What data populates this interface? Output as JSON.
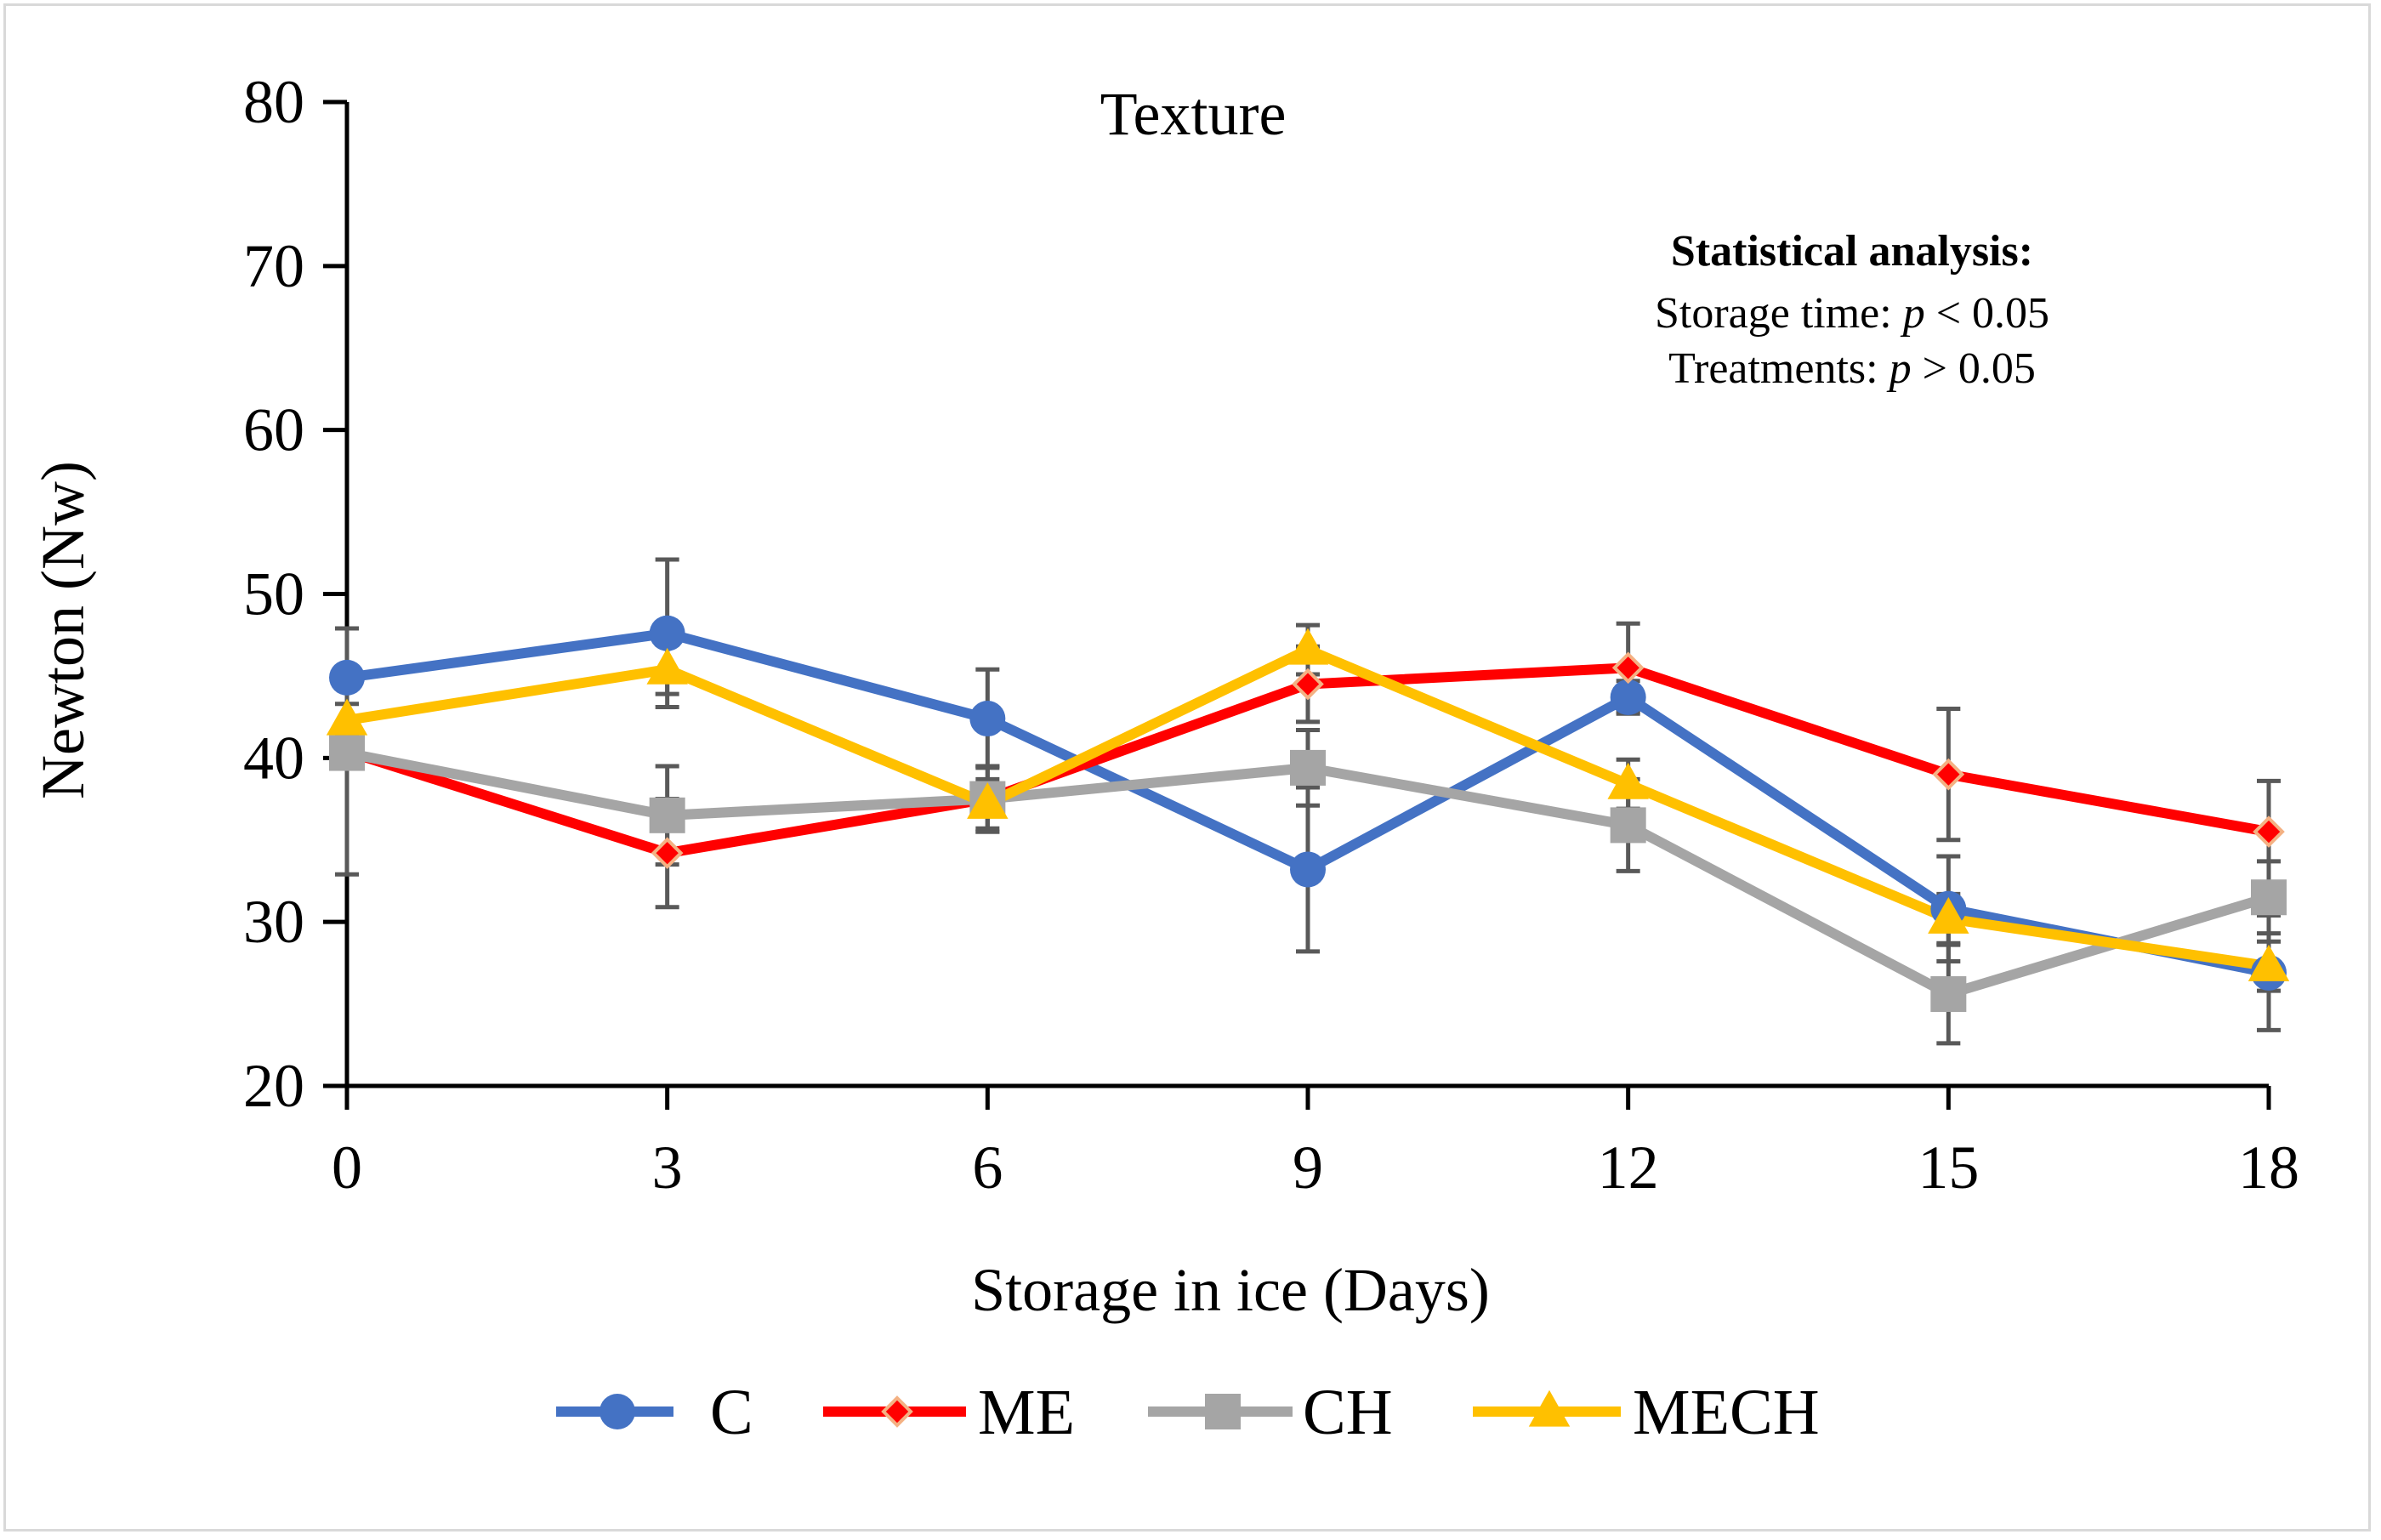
{
  "chart_data": {
    "type": "line",
    "title": "Texture",
    "xlabel": "Storage in ice (Days)",
    "ylabel": "Newton (Nw)",
    "x": [
      0,
      3,
      6,
      9,
      12,
      15,
      18
    ],
    "xticks": [
      "0",
      "3",
      "6",
      "9",
      "12",
      "15",
      "18"
    ],
    "yticks": [
      "20",
      "30",
      "40",
      "50",
      "60",
      "70",
      "80"
    ],
    "xlim": [
      0,
      18
    ],
    "ylim": [
      20,
      80
    ],
    "grid": false,
    "legend_position": "bottom",
    "annotation": {
      "heading": "Statistical analysis:",
      "line1_label": "Storage time: ",
      "line1_p": "p",
      "line1_rest": " < 0.05",
      "line2_label": "Treatments: ",
      "line2_p": "p",
      "line2_rest": " > 0.05"
    },
    "series": [
      {
        "name": "C",
        "color": "#4472c4",
        "marker": "circle",
        "values": [
          44.9,
          47.6,
          42.4,
          33.2,
          43.7,
          30.8,
          26.9
        ],
        "errors": [
          3.0,
          4.5,
          3.0,
          5.0,
          1.0,
          3.2,
          3.5
        ]
      },
      {
        "name": "ME",
        "color": "#ff0000",
        "marker": "diamond",
        "values": [
          40.4,
          34.2,
          37.5,
          44.5,
          45.5,
          39.0,
          35.5
        ],
        "errors": [
          7.5,
          3.3,
          2.0,
          2.3,
          2.7,
          4.0,
          3.1
        ]
      },
      {
        "name": "CH",
        "color": "#a5a5a5",
        "marker": "square",
        "values": [
          40.3,
          36.5,
          37.5,
          39.4,
          35.9,
          25.6,
          31.5
        ],
        "errors": [
          0.5,
          3.0,
          2.0,
          2.3,
          2.8,
          3.0,
          2.2
        ]
      },
      {
        "name": "MECH",
        "color": "#ffc000",
        "marker": "triangle",
        "values": [
          42.3,
          45.4,
          37.2,
          46.6,
          38.4,
          30.2,
          27.3
        ],
        "errors": [
          1.0,
          1.5,
          1.5,
          1.5,
          1.5,
          1.5,
          1.5
        ]
      }
    ]
  }
}
